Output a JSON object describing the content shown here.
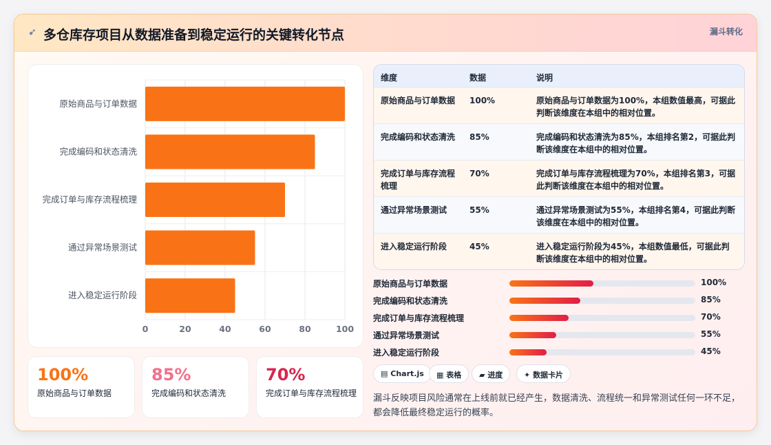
{
  "header": {
    "icon": "rocket-icon",
    "title": "多仓库存项目从数据准备到稳定运行的关键转化节点",
    "tag": "漏斗转化"
  },
  "chart_data": {
    "type": "bar",
    "orientation": "horizontal",
    "categories": [
      "原始商品与订单数据",
      "完成编码和状态清洗",
      "完成订单与库存流程梳理",
      "通过异常场景测试",
      "进入稳定运行阶段"
    ],
    "values": [
      100,
      85,
      70,
      55,
      45
    ],
    "xlim": [
      0,
      100
    ],
    "xticks": [
      0,
      20,
      40,
      60,
      80,
      100
    ],
    "bar_color": "#f97316",
    "grid": true,
    "legend": "none"
  },
  "stats": [
    {
      "value": "100%",
      "label": "原始商品与订单数据",
      "color": "#f97316"
    },
    {
      "value": "85%",
      "label": "完成编码和状态清洗",
      "color": "#f0728c"
    },
    {
      "value": "70%",
      "label": "完成订单与库存流程梳理",
      "color": "#d7264f"
    }
  ],
  "table": {
    "headers": [
      "维度",
      "数据",
      "说明"
    ],
    "rows": [
      {
        "dim": "原始商品与订单数据",
        "value": "100%",
        "desc": "原始商品与订单数据为100%，本组数值最高，可据此判断该维度在本组中的相对位置。"
      },
      {
        "dim": "完成编码和状态清洗",
        "value": "85%",
        "desc": "完成编码和状态清洗为85%，本组排名第2，可据此判断该维度在本组中的相对位置。"
      },
      {
        "dim": "完成订单与库存流程梳理",
        "value": "70%",
        "desc": "完成订单与库存流程梳理为70%，本组排名第3，可据此判断该维度在本组中的相对位置。"
      },
      {
        "dim": "通过异常场景测试",
        "value": "55%",
        "desc": "通过异常场景测试为55%，本组排名第4，可据此判断该维度在本组中的相对位置。"
      },
      {
        "dim": "进入稳定运行阶段",
        "value": "45%",
        "desc": "进入稳定运行阶段为45%，本组数值最低，可据此判断该维度在本组中的相对位置。"
      }
    ]
  },
  "progress": [
    {
      "label": "原始商品与订单数据",
      "value": "100%",
      "fraction": 0.45
    },
    {
      "label": "完成编码和状态清洗",
      "value": "85%",
      "fraction": 0.38
    },
    {
      "label": "完成订单与库存流程梳理",
      "value": "70%",
      "fraction": 0.32
    },
    {
      "label": "通过异常场景测试",
      "value": "55%",
      "fraction": 0.25
    },
    {
      "label": "进入稳定运行阶段",
      "value": "45%",
      "fraction": 0.2
    }
  ],
  "chips": [
    {
      "icon": "chart-icon",
      "glyph": "▤",
      "label": "Chart.js"
    },
    {
      "icon": "table-icon",
      "glyph": "▦",
      "label": "表格"
    },
    {
      "icon": "folder-icon",
      "glyph": "▰",
      "label": "进度"
    },
    {
      "icon": "sparkle-icon",
      "glyph": "✦",
      "label": "数据卡片"
    }
  ],
  "note": "漏斗反映项目风险通常在上线前就已经产生，数据清洗、流程统一和异常测试任何一环不足，都会降低最终稳定运行的概率。"
}
